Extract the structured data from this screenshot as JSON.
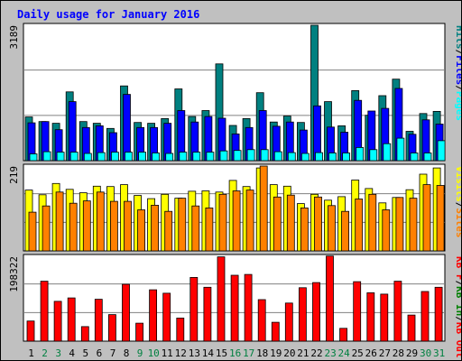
{
  "title": "Daily usage for January 2016",
  "colors": {
    "background": "#c0c0c0",
    "plot_background": "#ffffff",
    "hits": "#008080",
    "files": "#0000ff",
    "pages": "#00ffff",
    "visits": "#ffff00",
    "sites": "#ff8000",
    "kb_in": "#008000",
    "kb_out": "#ff0000",
    "kb_f": "#ff0000",
    "title": "#0000ff",
    "weekend_label": "#008040",
    "weekday_label": "#000000"
  },
  "chart_data": [
    {
      "type": "bar",
      "panel": "hits-files-pages",
      "categories": [
        "1",
        "2",
        "3",
        "4",
        "5",
        "6",
        "7",
        "8",
        "9",
        "10",
        "11",
        "12",
        "13",
        "14",
        "15",
        "16",
        "17",
        "18",
        "19",
        "20",
        "21",
        "22",
        "23",
        "24",
        "25",
        "26",
        "27",
        "28",
        "29",
        "30",
        "31"
      ],
      "weekend_days": [
        "2",
        "3",
        "9",
        "10",
        "16",
        "17",
        "23",
        "24",
        "30",
        "31"
      ],
      "ylim": [
        0,
        3189
      ],
      "ytick_label": "3189",
      "legend": [
        {
          "text": "Hits",
          "color": "#008080"
        },
        {
          "text": "/",
          "color": "#000000"
        },
        {
          "text": "Files",
          "color": "#0000ff"
        },
        {
          "text": "/",
          "color": "#000000"
        },
        {
          "text": "Pages",
          "color": "#00ffff"
        }
      ],
      "series": [
        {
          "name": "Hits",
          "color": "#008080",
          "values": [
            1030,
            920,
            880,
            1620,
            920,
            880,
            760,
            1760,
            900,
            880,
            990,
            1690,
            1040,
            1180,
            2280,
            830,
            990,
            1600,
            910,
            1050,
            900,
            3190,
            1390,
            820,
            1650,
            1070,
            1530,
            1920,
            690,
            1110,
            1160
          ]
        },
        {
          "name": "Files",
          "color": "#0000ff",
          "values": [
            890,
            920,
            730,
            1390,
            780,
            820,
            660,
            1560,
            780,
            780,
            880,
            1180,
            910,
            1040,
            1000,
            630,
            780,
            1180,
            810,
            910,
            720,
            1290,
            790,
            670,
            1420,
            1170,
            1230,
            1700,
            620,
            960,
            860
          ]
        },
        {
          "name": "Pages",
          "color": "#00ffff",
          "values": [
            160,
            210,
            200,
            200,
            170,
            190,
            200,
            200,
            200,
            180,
            170,
            200,
            200,
            200,
            230,
            240,
            260,
            260,
            210,
            190,
            170,
            190,
            180,
            180,
            310,
            260,
            400,
            530,
            180,
            180,
            470
          ]
        }
      ]
    },
    {
      "type": "bar",
      "panel": "visits-sites",
      "categories": [
        "1",
        "2",
        "3",
        "4",
        "5",
        "6",
        "7",
        "8",
        "9",
        "10",
        "11",
        "12",
        "13",
        "14",
        "15",
        "16",
        "17",
        "18",
        "19",
        "20",
        "21",
        "22",
        "23",
        "24",
        "25",
        "26",
        "27",
        "28",
        "29",
        "30",
        "31"
      ],
      "ylim": [
        0,
        219
      ],
      "ytick_label": "219",
      "legend": [
        {
          "text": "Visits",
          "color": "#ffff00"
        },
        {
          "text": "/",
          "color": "#000000"
        },
        {
          "text": "Sites",
          "color": "#ff8000"
        }
      ],
      "series": [
        {
          "name": "Visits",
          "color": "#ffff00",
          "values": [
            157,
            145,
            174,
            159,
            150,
            167,
            166,
            171,
            143,
            135,
            146,
            136,
            154,
            155,
            152,
            182,
            166,
            214,
            171,
            167,
            122,
            146,
            131,
            140,
            183,
            161,
            124,
            138,
            158,
            198,
            214
          ]
        },
        {
          "name": "Sites",
          "color": "#ff8000",
          "values": [
            100,
            116,
            152,
            123,
            129,
            152,
            128,
            128,
            106,
            118,
            102,
            136,
            116,
            111,
            146,
            155,
            157,
            219,
            139,
            144,
            111,
            139,
            117,
            102,
            134,
            146,
            106,
            138,
            136,
            171,
            169
          ]
        }
      ]
    },
    {
      "type": "bar",
      "panel": "kbF-kbIn-kbOut",
      "categories": [
        "1",
        "2",
        "3",
        "4",
        "5",
        "6",
        "7",
        "8",
        "9",
        "10",
        "11",
        "12",
        "13",
        "14",
        "15",
        "16",
        "17",
        "18",
        "19",
        "20",
        "21",
        "22",
        "23",
        "24",
        "25",
        "26",
        "27",
        "28",
        "29",
        "30",
        "31"
      ],
      "ylim": [
        0,
        198322
      ],
      "ytick_label": "198322",
      "legend": [
        {
          "text": "KB F",
          "color": "#ff0000"
        },
        {
          "text": "/",
          "color": "#000000"
        },
        {
          "text": "KB In",
          "color": "#008000"
        },
        {
          "text": "/",
          "color": "#000000"
        },
        {
          "text": "KB Out",
          "color": "#ff0000"
        }
      ],
      "series": [
        {
          "name": "KB F",
          "color": "#ff0000",
          "values": [
            47000,
            140000,
            93000,
            101000,
            34000,
            98000,
            62000,
            133000,
            42000,
            120000,
            112000,
            54000,
            149000,
            126000,
            197000,
            154000,
            156000,
            97000,
            44000,
            89000,
            125000,
            137000,
            199000,
            30000,
            139000,
            113000,
            110000,
            140000,
            61000,
            116000,
            126000
          ]
        }
      ]
    }
  ]
}
